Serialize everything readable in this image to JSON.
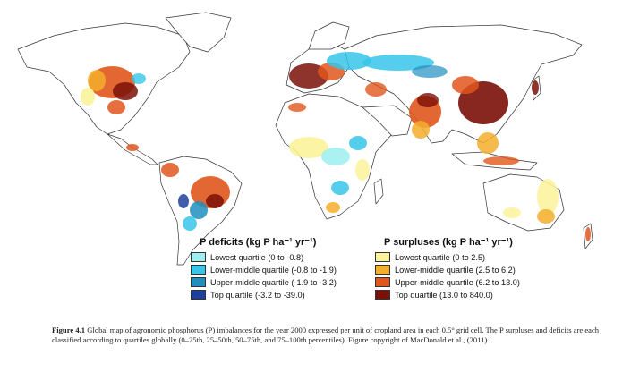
{
  "legend": {
    "deficits": {
      "title": "P deficits (kg P ha⁻¹ yr⁻¹)",
      "items": [
        {
          "label": "Lowest quartile (0 to -0.8)",
          "color": "#9eeef0"
        },
        {
          "label": "Lower-middle quartile (-0.8 to -1.9)",
          "color": "#37c6ea"
        },
        {
          "label": "Upper-middle quartile (-1.9 to -3.2)",
          "color": "#1f8fc0"
        },
        {
          "label": "Top quartile (-3.2 to -39.0)",
          "color": "#1f3f9e"
        }
      ]
    },
    "surpluses": {
      "title": "P surpluses (kg P ha⁻¹ yr⁻¹)",
      "items": [
        {
          "label": "Lowest quartile (0 to 2.5)",
          "color": "#fbf39a"
        },
        {
          "label": "Lower-middle quartile (2.5 to 6.2)",
          "color": "#f3ae2c"
        },
        {
          "label": "Upper-middle quartile (6.2 to 13.0)",
          "color": "#e0561c"
        },
        {
          "label": "Top quartile (13.0 to 840.0)",
          "color": "#7a1008"
        }
      ]
    }
  },
  "caption": {
    "label": "Figure 4.1",
    "text": " Global map of agronomic phosphorus (P) imbalances for the year 2000 expressed per unit of cropland area in each 0.5° grid cell. The P surpluses and deficits are each classified according to quartiles globally (0–25th, 25–50th, 50–75th, and 75–100th percentiles). Figure copyright of MacDonald et al., (2011)."
  }
}
